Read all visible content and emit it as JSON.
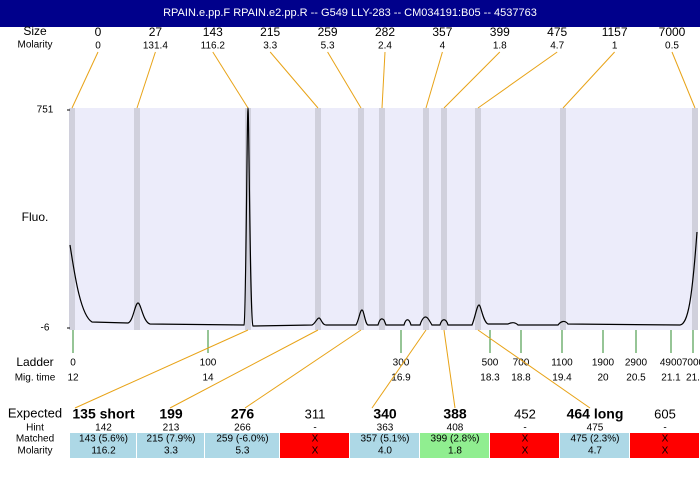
{
  "title": "RPAIN.e.pp.F  RPAIN.e2.pp.R -- G549 LLY-283 -- CM034191:B05 -- 4537763",
  "peaks": {
    "row_labels": [
      "Size",
      "Molarity"
    ],
    "sizes": [
      0,
      27,
      143,
      215,
      259,
      282,
      357,
      399,
      475,
      1157,
      7000
    ],
    "molarities": [
      0,
      131.4,
      116.2,
      3.3,
      5.3,
      2.4,
      4,
      1.8,
      4.7,
      1,
      0.5
    ]
  },
  "plot": {
    "ylabel": "Fluo.",
    "ylim": [
      -6,
      751
    ],
    "yticks": [
      -6,
      751
    ],
    "fill": "#ececfa",
    "band_color": "#d0d0dc",
    "trace_color": "#000000"
  },
  "ladder": {
    "label": "Ladder",
    "mig_label": "Mig. time",
    "sizes": [
      0,
      100,
      300,
      500,
      700,
      1100,
      1900,
      2900,
      4900,
      7000
    ],
    "mig_times": [
      "12",
      "14",
      "16.9",
      "18.3",
      "18.8",
      "19.4",
      "20",
      "20.5",
      "21.1",
      "21."
    ],
    "color": "#2e8b2e"
  },
  "results": {
    "row_labels": [
      "Expected",
      "Hint",
      "Matched",
      "Molarity"
    ],
    "columns": [
      {
        "expected": "135 short",
        "hint": "142",
        "matched": "143 (5.6%)",
        "molarity": "116.2",
        "bold": true,
        "color": "#add8e6"
      },
      {
        "expected": "199",
        "hint": "213",
        "matched": "215 (7.9%)",
        "molarity": "3.3",
        "bold": true,
        "color": "#add8e6"
      },
      {
        "expected": "276",
        "hint": "266",
        "matched": "259 (-6.0%)",
        "molarity": "5.3",
        "bold": true,
        "color": "#add8e6"
      },
      {
        "expected": "311",
        "hint": "-",
        "matched": "X",
        "molarity": "X",
        "bold": false,
        "color": "#ff0000"
      },
      {
        "expected": "340",
        "hint": "363",
        "matched": "357 (5.1%)",
        "molarity": "4.0",
        "bold": true,
        "color": "#add8e6"
      },
      {
        "expected": "388",
        "hint": "408",
        "matched": "399 (2.8%)",
        "molarity": "1.8",
        "bold": true,
        "color": "#90ee90"
      },
      {
        "expected": "452",
        "hint": "-",
        "matched": "X",
        "molarity": "X",
        "bold": false,
        "color": "#ff0000"
      },
      {
        "expected": "464 long",
        "hint": "475",
        "matched": "475 (2.3%)",
        "molarity": "4.7",
        "bold": true,
        "color": "#add8e6"
      },
      {
        "expected": "605",
        "hint": "-",
        "matched": "X",
        "molarity": "X",
        "bold": false,
        "color": "#ff0000"
      }
    ]
  }
}
